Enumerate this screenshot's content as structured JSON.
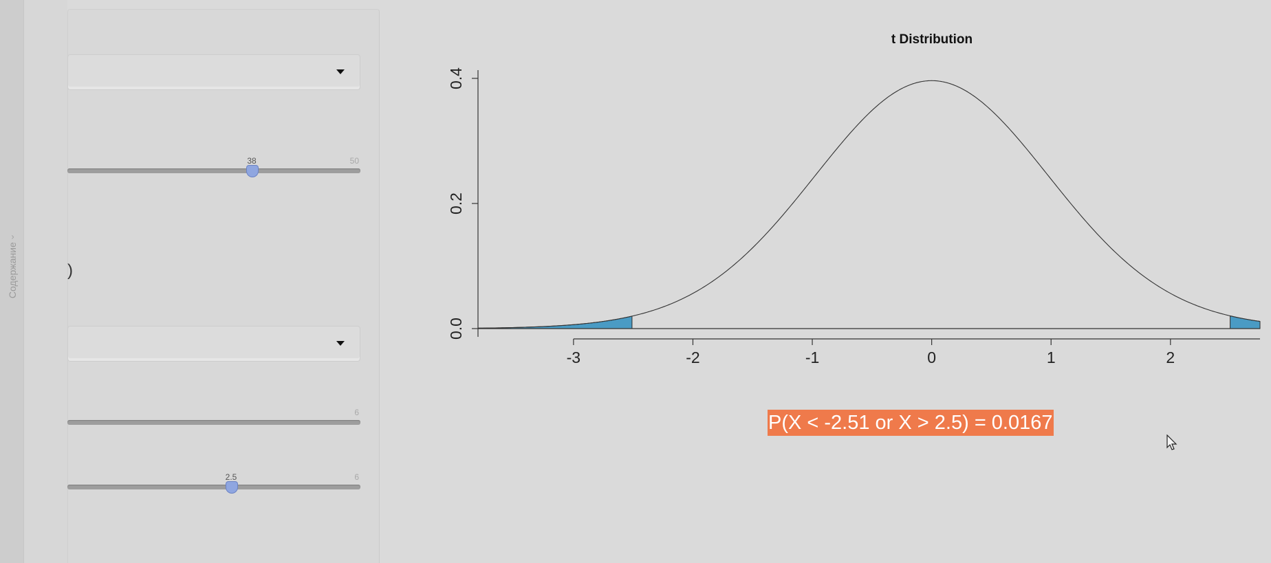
{
  "toc": {
    "label": "Содержание"
  },
  "sidebar": {
    "select_1": {
      "selected": ""
    },
    "slider_df": {
      "value": 38,
      "value_label": "38",
      "max_label": "50",
      "min": 0,
      "max": 50
    },
    "paren_text": ")",
    "select_2": {
      "selected": ""
    },
    "slider_a": {
      "max_label": "6"
    },
    "slider_b": {
      "value": 2.5,
      "value_label": "2.5",
      "max_label": "6",
      "min": -6,
      "max": 6
    }
  },
  "chart_data": {
    "type": "area",
    "title": "t Distribution",
    "distribution": "t",
    "df": 38,
    "xlim": [
      -3.8,
      2.75
    ],
    "ylim": [
      0,
      0.4
    ],
    "x_ticks": [
      "-3",
      "-2",
      "-1",
      "0",
      "1",
      "2"
    ],
    "y_ticks": [
      "0.0",
      "0.2",
      "0.4"
    ],
    "shaded_regions": [
      {
        "from": -3.8,
        "to": -2.51,
        "color": "#4a9bc4"
      },
      {
        "from": 2.5,
        "to": 2.75,
        "color": "#4a9bc4"
      }
    ],
    "xlabel": "",
    "ylabel": ""
  },
  "result": {
    "text": "P(X < -2.51 or X > 2.5) = 0.0167",
    "bg_color": "#ef7a4b"
  }
}
